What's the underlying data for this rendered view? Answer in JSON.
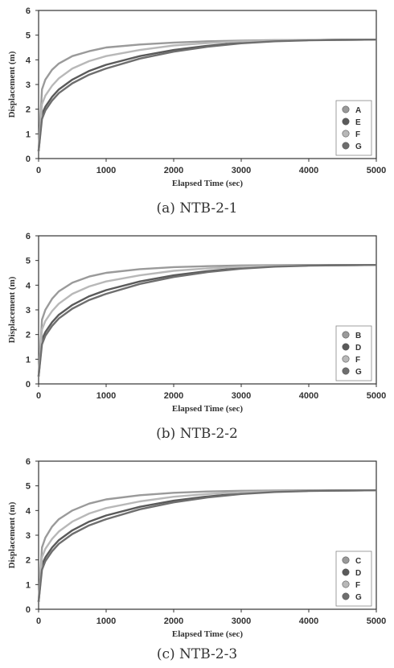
{
  "chart_data": [
    {
      "type": "line",
      "caption": "(a) NTB-2-1",
      "xlabel": "Elapsed Time (sec)",
      "ylabel": "Displacement (m)",
      "xlim": [
        0,
        5000
      ],
      "ylim": [
        0,
        6
      ],
      "xticks": [
        "0",
        "1000",
        "2000",
        "3000",
        "4000",
        "5000"
      ],
      "yticks": [
        "0",
        "1",
        "2",
        "3",
        "4",
        "5",
        "6"
      ],
      "legend_position": "bottom-right",
      "x": [
        0,
        50,
        100,
        200,
        300,
        500,
        750,
        1000,
        1500,
        2000,
        2500,
        3000,
        3500,
        4000,
        4500,
        5000
      ],
      "series": [
        {
          "name": "A",
          "values": [
            0.3,
            2.8,
            3.2,
            3.6,
            3.85,
            4.15,
            4.35,
            4.5,
            4.62,
            4.7,
            4.75,
            4.78,
            4.8,
            4.8,
            4.82,
            4.82
          ],
          "color": "#9a9a9a"
        },
        {
          "name": "E",
          "values": [
            0.3,
            1.8,
            2.1,
            2.5,
            2.8,
            3.2,
            3.55,
            3.8,
            4.15,
            4.4,
            4.57,
            4.7,
            4.77,
            4.8,
            4.81,
            4.82
          ],
          "color": "#5a5a5a"
        },
        {
          "name": "F",
          "values": [
            0.3,
            2.2,
            2.55,
            2.95,
            3.25,
            3.65,
            3.95,
            4.15,
            4.4,
            4.58,
            4.68,
            4.75,
            4.78,
            4.8,
            4.81,
            4.82
          ],
          "color": "#b8b8b8"
        },
        {
          "name": "G",
          "values": [
            0.3,
            1.6,
            1.95,
            2.35,
            2.65,
            3.05,
            3.4,
            3.65,
            4.05,
            4.33,
            4.53,
            4.67,
            4.75,
            4.79,
            4.81,
            4.82
          ],
          "color": "#6e6e6e"
        }
      ]
    },
    {
      "type": "line",
      "caption": "(b) NTB-2-2",
      "xlabel": "Elapsed Time (sec)",
      "ylabel": "Displacement (m)",
      "xlim": [
        0,
        5000
      ],
      "ylim": [
        0,
        6
      ],
      "xticks": [
        "0",
        "1000",
        "2000",
        "3000",
        "4000",
        "5000"
      ],
      "yticks": [
        "0",
        "1",
        "2",
        "3",
        "4",
        "5",
        "6"
      ],
      "legend_position": "bottom-right",
      "x": [
        0,
        50,
        100,
        200,
        300,
        500,
        750,
        1000,
        1500,
        2000,
        2500,
        3000,
        3500,
        4000,
        4500,
        5000
      ],
      "series": [
        {
          "name": "B",
          "values": [
            0.3,
            2.6,
            3.0,
            3.45,
            3.75,
            4.1,
            4.35,
            4.5,
            4.65,
            4.73,
            4.77,
            4.8,
            4.81,
            4.82,
            4.82,
            4.82
          ],
          "color": "#9a9a9a"
        },
        {
          "name": "D",
          "values": [
            0.3,
            1.8,
            2.1,
            2.5,
            2.8,
            3.2,
            3.55,
            3.8,
            4.15,
            4.4,
            4.57,
            4.7,
            4.77,
            4.8,
            4.81,
            4.82
          ],
          "color": "#5a5a5a"
        },
        {
          "name": "F",
          "values": [
            0.3,
            2.2,
            2.55,
            2.95,
            3.25,
            3.65,
            3.95,
            4.15,
            4.4,
            4.58,
            4.68,
            4.75,
            4.78,
            4.8,
            4.81,
            4.82
          ],
          "color": "#b8b8b8"
        },
        {
          "name": "G",
          "values": [
            0.3,
            1.6,
            1.95,
            2.35,
            2.65,
            3.05,
            3.4,
            3.65,
            4.05,
            4.33,
            4.53,
            4.67,
            4.75,
            4.79,
            4.81,
            4.82
          ],
          "color": "#6e6e6e"
        }
      ]
    },
    {
      "type": "line",
      "caption": "(c) NTB-2-3",
      "xlabel": "Elapsed Time (sec)",
      "ylabel": "Displacement (m)",
      "xlim": [
        0,
        5000
      ],
      "ylim": [
        0,
        6
      ],
      "xticks": [
        "0",
        "1000",
        "2000",
        "3000",
        "4000",
        "5000"
      ],
      "yticks": [
        "0",
        "1",
        "2",
        "3",
        "4",
        "5",
        "6"
      ],
      "legend_position": "bottom-right",
      "x": [
        0,
        50,
        100,
        200,
        300,
        500,
        750,
        1000,
        1500,
        2000,
        2500,
        3000,
        3500,
        4000,
        4500,
        5000
      ],
      "series": [
        {
          "name": "C",
          "values": [
            0.3,
            2.5,
            2.9,
            3.35,
            3.65,
            4.0,
            4.28,
            4.45,
            4.62,
            4.72,
            4.77,
            4.8,
            4.81,
            4.82,
            4.82,
            4.82
          ],
          "color": "#9a9a9a"
        },
        {
          "name": "D",
          "values": [
            0.3,
            1.8,
            2.1,
            2.5,
            2.8,
            3.2,
            3.55,
            3.8,
            4.15,
            4.4,
            4.57,
            4.7,
            4.77,
            4.8,
            4.81,
            4.82
          ],
          "color": "#5a5a5a"
        },
        {
          "name": "F",
          "values": [
            0.3,
            2.1,
            2.45,
            2.85,
            3.15,
            3.55,
            3.88,
            4.1,
            4.37,
            4.56,
            4.67,
            4.74,
            4.78,
            4.8,
            4.81,
            4.82
          ],
          "color": "#b8b8b8"
        },
        {
          "name": "G",
          "values": [
            0.3,
            1.6,
            1.95,
            2.35,
            2.65,
            3.05,
            3.4,
            3.65,
            4.05,
            4.33,
            4.53,
            4.67,
            4.75,
            4.79,
            4.81,
            4.82
          ],
          "color": "#6e6e6e"
        }
      ]
    }
  ]
}
